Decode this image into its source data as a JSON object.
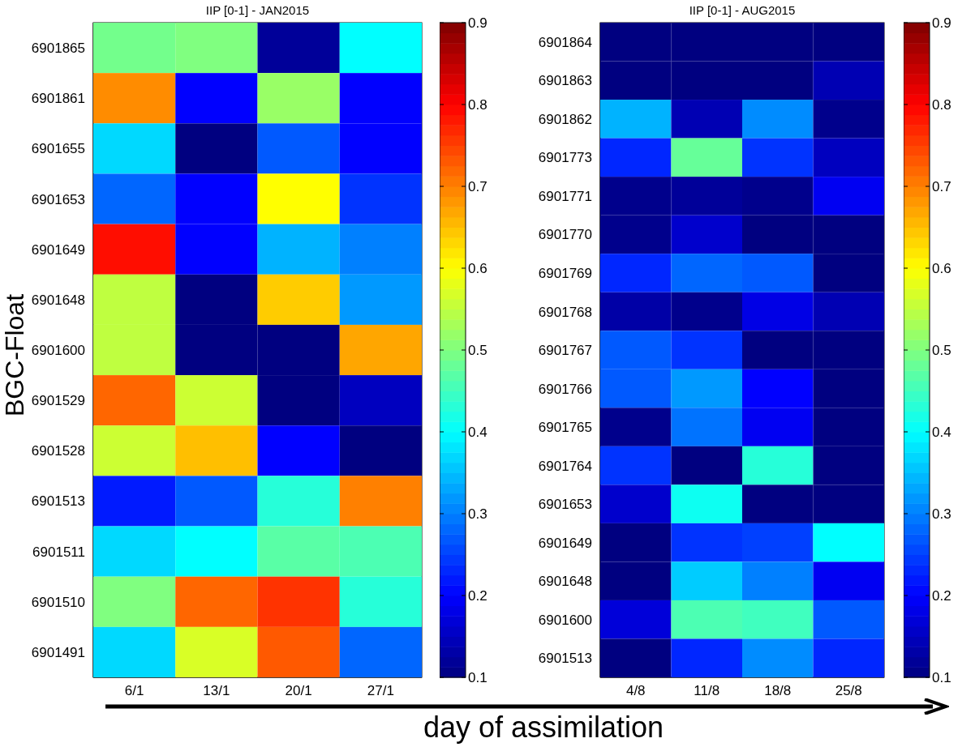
{
  "chart_data": [
    {
      "type": "heatmap",
      "title": "IIP [0-1] - JAN2015",
      "ylabel": "BGC-Float",
      "categories": [
        "6/1",
        "13/1",
        "20/1",
        "27/1"
      ],
      "y_categories": [
        "6901865",
        "6901861",
        "6901655",
        "6901653",
        "6901649",
        "6901648",
        "6901600",
        "6901529",
        "6901528",
        "6901513",
        "6901511",
        "6901510",
        "6901491"
      ],
      "cells": [
        [
          0.49,
          0.5,
          0.12,
          0.4
        ],
        [
          0.69,
          0.2,
          0.52,
          0.2
        ],
        [
          0.37,
          0.1,
          0.27,
          0.2
        ],
        [
          0.28,
          0.2,
          0.6,
          0.24
        ],
        [
          0.79,
          0.2,
          0.34,
          0.3
        ],
        [
          0.55,
          0.1,
          0.64,
          0.32
        ],
        [
          0.55,
          0.1,
          0.1,
          0.67
        ],
        [
          0.72,
          0.56,
          0.1,
          0.15
        ],
        [
          0.56,
          0.65,
          0.2,
          0.1
        ],
        [
          0.22,
          0.27,
          0.43,
          0.7
        ],
        [
          0.37,
          0.4,
          0.47,
          0.46
        ],
        [
          0.5,
          0.72,
          0.76,
          0.43
        ],
        [
          0.37,
          0.57,
          0.73,
          0.28
        ]
      ],
      "clim": [
        0.1,
        0.9
      ],
      "cticks": [
        0.1,
        0.2,
        0.3,
        0.4,
        0.5,
        0.6,
        0.7,
        0.8,
        0.9
      ]
    },
    {
      "type": "heatmap",
      "title": "IIP [0-1] - AUG2015",
      "xlabel": "day of assimilation",
      "categories": [
        "4/8",
        "11/8",
        "18/8",
        "25/8"
      ],
      "y_categories": [
        "6901864",
        "6901863",
        "6901862",
        "6901773",
        "6901771",
        "6901770",
        "6901769",
        "6901768",
        "6901767",
        "6901766",
        "6901765",
        "6901764",
        "6901653",
        "6901649",
        "6901648",
        "6901600",
        "6901513"
      ],
      "cells": [
        [
          0.1,
          0.1,
          0.1,
          0.1
        ],
        [
          0.1,
          0.1,
          0.1,
          0.14
        ],
        [
          0.34,
          0.14,
          0.31,
          0.11
        ],
        [
          0.23,
          0.48,
          0.24,
          0.15
        ],
        [
          0.11,
          0.12,
          0.11,
          0.19
        ],
        [
          0.11,
          0.16,
          0.1,
          0.1
        ],
        [
          0.23,
          0.28,
          0.27,
          0.1
        ],
        [
          0.13,
          0.11,
          0.18,
          0.14
        ],
        [
          0.27,
          0.24,
          0.1,
          0.1
        ],
        [
          0.27,
          0.32,
          0.2,
          0.1
        ],
        [
          0.11,
          0.29,
          0.19,
          0.1
        ],
        [
          0.24,
          0.1,
          0.43,
          0.1
        ],
        [
          0.16,
          0.41,
          0.1,
          0.1
        ],
        [
          0.1,
          0.24,
          0.25,
          0.4
        ],
        [
          0.1,
          0.36,
          0.3,
          0.19
        ],
        [
          0.17,
          0.46,
          0.45,
          0.27
        ],
        [
          0.1,
          0.23,
          0.31,
          0.23
        ]
      ],
      "clim": [
        0.1,
        0.9
      ],
      "cticks": [
        0.1,
        0.2,
        0.3,
        0.4,
        0.5,
        0.6,
        0.7,
        0.8,
        0.9
      ]
    }
  ]
}
